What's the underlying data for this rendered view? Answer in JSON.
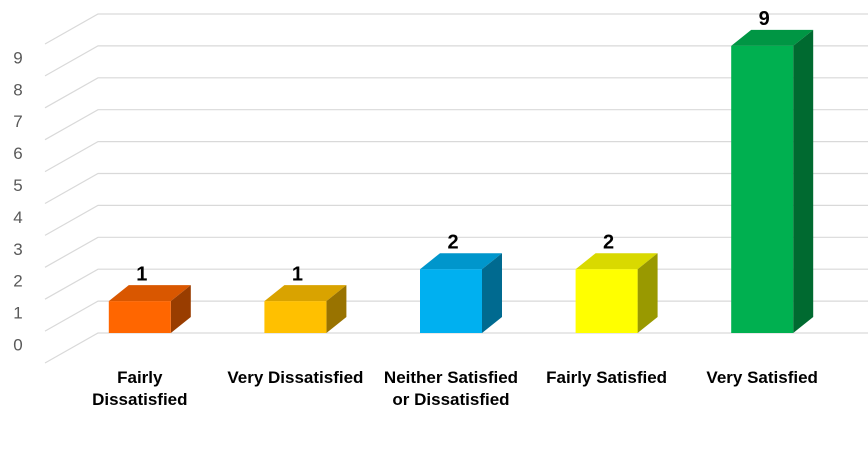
{
  "chart_data": {
    "type": "bar3d",
    "categories": [
      "Fairly Dissatisfied",
      "Very Dissatisfied",
      "Neither Satisfied or Dissatisfied",
      "Fairly Satisfied",
      "Very Satisfied"
    ],
    "values": [
      1,
      1,
      2,
      2,
      9
    ],
    "colors": [
      "#ff6600",
      "#ffc000",
      "#00b0f0",
      "#ffff00",
      "#00b050"
    ],
    "ylim": [
      0,
      10
    ],
    "yticks": [
      0,
      1,
      2,
      3,
      4,
      5,
      6,
      7,
      8,
      9
    ],
    "grid": true
  }
}
